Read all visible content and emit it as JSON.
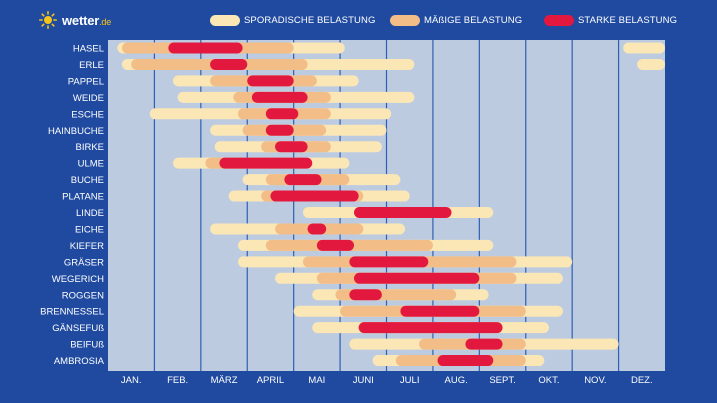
{
  "brand": {
    "name": "wetter",
    "tld": ".de",
    "icon": "sun-icon"
  },
  "colors": {
    "background": "#1f4aa0",
    "plot": "#bdcbe0",
    "sporadic": "#fbe7b5",
    "moderate": "#f3bd87",
    "strong": "#e2183f"
  },
  "chart_data": {
    "type": "timeline",
    "months": [
      "JAN.",
      "FEB.",
      "MÄRZ",
      "APRIL",
      "MAI",
      "JUNI",
      "JULI",
      "AUG.",
      "SEPT.",
      "OKT.",
      "NOV.",
      "DEZ."
    ],
    "legend": [
      {
        "key": "sporadic",
        "label": "SPORADISCHE BELASTUNG"
      },
      {
        "key": "moderate",
        "label": "MÄßIGE BELASTUNG"
      },
      {
        "key": "strong",
        "label": "STARKE BELASTUNG"
      }
    ],
    "x_unit": "month (0 = start of January, 12 = end of December)",
    "plants": [
      {
        "name": "HASEL",
        "sporadic": [
          [
            0.2,
            5.1
          ],
          [
            11.1,
            12.0
          ]
        ],
        "moderate": [
          [
            0.3,
            4.0
          ]
        ],
        "strong": [
          [
            1.3,
            2.9
          ]
        ]
      },
      {
        "name": "ERLE",
        "sporadic": [
          [
            0.3,
            6.6
          ],
          [
            11.4,
            12.0
          ]
        ],
        "moderate": [
          [
            0.5,
            4.3
          ]
        ],
        "strong": [
          [
            2.2,
            3.0
          ]
        ]
      },
      {
        "name": "PAPPEL",
        "sporadic": [
          [
            1.4,
            5.4
          ]
        ],
        "moderate": [
          [
            2.2,
            4.5
          ]
        ],
        "strong": [
          [
            3.0,
            4.0
          ]
        ]
      },
      {
        "name": "WEIDE",
        "sporadic": [
          [
            1.5,
            6.6
          ]
        ],
        "moderate": [
          [
            2.7,
            4.8
          ]
        ],
        "strong": [
          [
            3.1,
            4.3
          ]
        ]
      },
      {
        "name": "ESCHE",
        "sporadic": [
          [
            0.9,
            6.1
          ]
        ],
        "moderate": [
          [
            2.8,
            4.8
          ]
        ],
        "strong": [
          [
            3.4,
            4.1
          ]
        ]
      },
      {
        "name": "HAINBUCHE",
        "sporadic": [
          [
            2.2,
            6.0
          ]
        ],
        "moderate": [
          [
            2.9,
            4.7
          ]
        ],
        "strong": [
          [
            3.4,
            4.0
          ]
        ]
      },
      {
        "name": "BIRKE",
        "sporadic": [
          [
            2.3,
            5.9
          ]
        ],
        "moderate": [
          [
            3.3,
            4.8
          ]
        ],
        "strong": [
          [
            3.6,
            4.3
          ]
        ]
      },
      {
        "name": "ULME",
        "sporadic": [
          [
            1.4,
            5.2
          ]
        ],
        "moderate": [
          [
            2.1,
            4.3
          ]
        ],
        "strong": [
          [
            2.4,
            4.4
          ]
        ]
      },
      {
        "name": "BUCHE",
        "sporadic": [
          [
            2.9,
            6.3
          ]
        ],
        "moderate": [
          [
            3.4,
            5.2
          ]
        ],
        "strong": [
          [
            3.8,
            4.6
          ]
        ]
      },
      {
        "name": "PLATANE",
        "sporadic": [
          [
            2.6,
            6.5
          ]
        ],
        "moderate": [
          [
            3.3,
            5.5
          ]
        ],
        "strong": [
          [
            3.5,
            5.4
          ]
        ]
      },
      {
        "name": "LINDE",
        "sporadic": [
          [
            4.2,
            8.3
          ]
        ],
        "moderate": [],
        "strong": [
          [
            5.3,
            7.4
          ]
        ]
      },
      {
        "name": "EICHE",
        "sporadic": [
          [
            2.2,
            6.4
          ]
        ],
        "moderate": [
          [
            3.6,
            5.5
          ]
        ],
        "strong": [
          [
            4.3,
            4.7
          ]
        ]
      },
      {
        "name": "KIEFER",
        "sporadic": [
          [
            2.8,
            8.3
          ]
        ],
        "moderate": [
          [
            3.4,
            7.0
          ]
        ],
        "strong": [
          [
            4.5,
            5.3
          ]
        ]
      },
      {
        "name": "GRÄSER",
        "sporadic": [
          [
            2.8,
            10.0
          ]
        ],
        "moderate": [
          [
            4.2,
            8.8
          ]
        ],
        "strong": [
          [
            5.2,
            6.9
          ]
        ]
      },
      {
        "name": "WEGERICH",
        "sporadic": [
          [
            3.6,
            9.8
          ]
        ],
        "moderate": [
          [
            4.5,
            8.8
          ]
        ],
        "strong": [
          [
            5.3,
            8.0
          ]
        ]
      },
      {
        "name": "ROGGEN",
        "sporadic": [
          [
            4.4,
            8.2
          ]
        ],
        "moderate": [
          [
            4.9,
            7.5
          ]
        ],
        "strong": [
          [
            5.2,
            5.9
          ]
        ]
      },
      {
        "name": "BRENNESSEL",
        "sporadic": [
          [
            4.0,
            9.8
          ]
        ],
        "moderate": [
          [
            5.0,
            9.0
          ]
        ],
        "strong": [
          [
            6.3,
            8.0
          ]
        ]
      },
      {
        "name": "GÄNSEFUß",
        "sporadic": [
          [
            4.4,
            9.5
          ]
        ],
        "moderate": [
          [
            5.4,
            8.4
          ]
        ],
        "strong": [
          [
            5.4,
            8.5
          ]
        ]
      },
      {
        "name": "BEIFUß",
        "sporadic": [
          [
            5.2,
            11.0
          ]
        ],
        "moderate": [
          [
            6.7,
            9.0
          ]
        ],
        "strong": [
          [
            7.7,
            8.5
          ]
        ]
      },
      {
        "name": "AMBROSIA",
        "sporadic": [
          [
            5.7,
            9.4
          ]
        ],
        "moderate": [
          [
            6.2,
            9.0
          ]
        ],
        "strong": [
          [
            7.1,
            8.3
          ]
        ]
      }
    ]
  }
}
